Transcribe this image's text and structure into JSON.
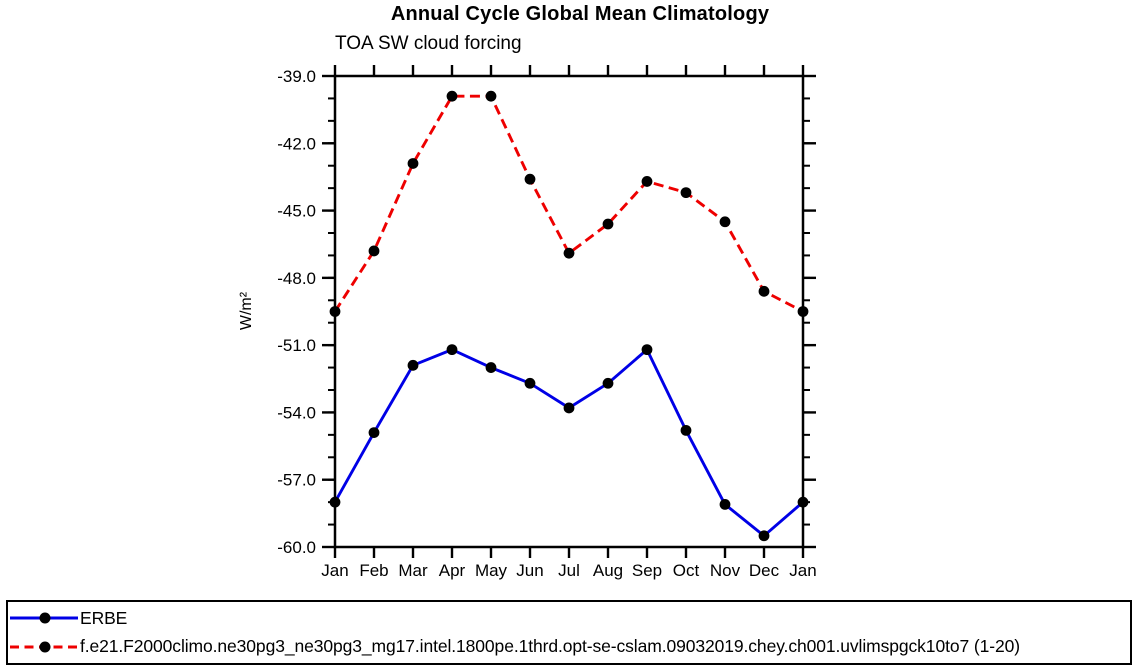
{
  "title": "Annual Cycle Global Mean Climatology",
  "subtitle": "TOA SW cloud forcing",
  "chart_data": {
    "type": "line",
    "title": "Annual Cycle Global Mean Climatology",
    "subtitle": "TOA SW cloud forcing",
    "ylabel": "W/m²",
    "xlabel": "",
    "categories": [
      "Jan",
      "Feb",
      "Mar",
      "Apr",
      "May",
      "Jun",
      "Jul",
      "Aug",
      "Sep",
      "Oct",
      "Nov",
      "Dec",
      "Jan"
    ],
    "ylim": [
      -60.0,
      -39.0
    ],
    "ytick_values": [
      -39.0,
      -42.0,
      -45.0,
      -48.0,
      -51.0,
      -54.0,
      -57.0,
      -60.0
    ],
    "ytick_labels": [
      "-39.0",
      "-42.0",
      "-45.0",
      "-48.0",
      "-51.0",
      "-54.0",
      "-57.0",
      "-60.0"
    ],
    "y_minor_tick_interval": 1.0,
    "grid": "off",
    "legend_position": "bottom-outside-box",
    "marker_color": "#000000",
    "series": [
      {
        "name": "ERBE",
        "key": "erbe",
        "color": "#0000e6",
        "style": "solid",
        "values": [
          -58.0,
          -54.9,
          -51.9,
          -51.2,
          -52.0,
          -52.7,
          -53.8,
          -52.7,
          -51.2,
          -54.8,
          -58.1,
          -59.5,
          -58.0
        ]
      },
      {
        "name": "f.e21.F2000climo.ne30pg3_ne30pg3_mg17.intel.1800pe.1thrd.opt-se-cslam.09032019.chey.ch001.uvlimspgck10to7 (1-20)",
        "key": "model",
        "color": "#ee0000",
        "style": "dashed",
        "values": [
          -49.5,
          -46.8,
          -42.9,
          -39.9,
          -39.9,
          -43.6,
          -46.9,
          -45.6,
          -43.7,
          -44.2,
          -45.5,
          -48.6,
          -49.5
        ]
      }
    ]
  }
}
